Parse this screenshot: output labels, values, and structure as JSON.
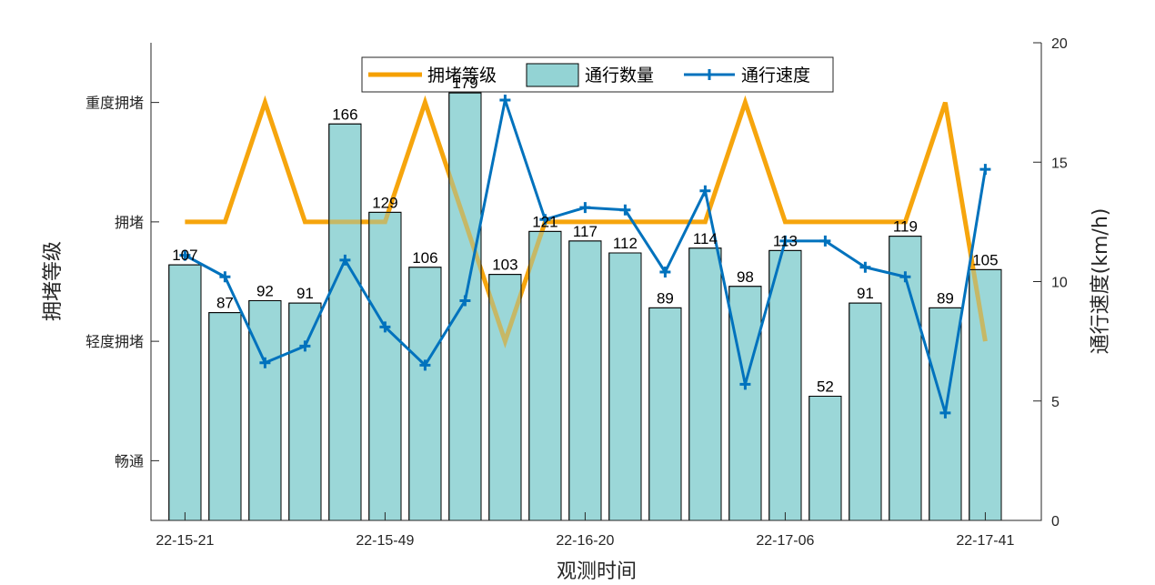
{
  "chart_data": {
    "type": "bar",
    "xlabel": "观测时间",
    "ylabel_left": "拥堵等级",
    "ylabel_right": "通行速度(km/h)",
    "x_tick_labels": [
      {
        "index": 0,
        "label": "22-15-21"
      },
      {
        "index": 5,
        "label": "22-15-49"
      },
      {
        "index": 10,
        "label": "22-16-20"
      },
      {
        "index": 15,
        "label": "22-17-06"
      },
      {
        "index": 20,
        "label": "22-17-41"
      }
    ],
    "left_axis": {
      "ylim": [
        0,
        4
      ],
      "tick_values": [
        0.5,
        1.5,
        2.5,
        3.5
      ],
      "tick_labels": [
        "畅通",
        "轻度拥堵",
        "拥堵",
        "重度拥堵"
      ]
    },
    "right_axis": {
      "ylim": [
        0,
        20
      ],
      "ticks": [
        0,
        5,
        10,
        15,
        20
      ]
    },
    "series": [
      {
        "name": "拥堵等级",
        "kind": "line",
        "axis": "left",
        "color": "#F5A000",
        "values": [
          2.5,
          2.5,
          3.5,
          2.5,
          2.5,
          2.5,
          3.5,
          2.5,
          1.5,
          2.5,
          2.5,
          2.5,
          2.5,
          2.5,
          3.5,
          2.5,
          2.5,
          2.5,
          2.5,
          3.5,
          1.5
        ]
      },
      {
        "name": "通行数量",
        "kind": "bar",
        "axis": "left",
        "color": "#93D3D4",
        "values": [
          107,
          87,
          92,
          91,
          166,
          129,
          106,
          179,
          103,
          121,
          117,
          112,
          89,
          114,
          98,
          113,
          52,
          91,
          119,
          89,
          105
        ],
        "value_scale_per_unit": 50
      },
      {
        "name": "通行速度",
        "kind": "line-marker",
        "axis": "right",
        "color": "#0072BD",
        "values": [
          11.1,
          10.2,
          6.6,
          7.3,
          10.9,
          8.1,
          6.5,
          9.2,
          17.6,
          12.6,
          13.1,
          13.0,
          10.4,
          13.8,
          5.7,
          11.7,
          11.7,
          10.6,
          10.2,
          4.5,
          14.7
        ]
      }
    ],
    "legend": {
      "placement": "top-center",
      "entries": [
        "拥堵等级",
        "通行数量",
        "通行速度"
      ]
    },
    "grid": false
  }
}
